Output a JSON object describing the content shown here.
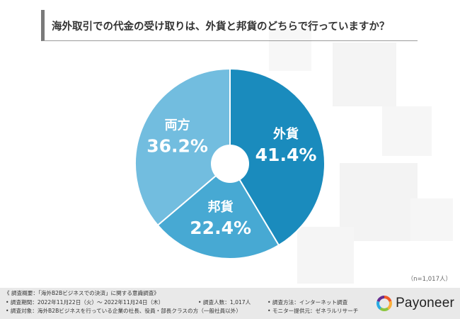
{
  "title": "海外取引での代金の受け取りは、外貨と邦貨のどちらで行っていますか？",
  "sample_note": "（n=1,017人）",
  "footer": {
    "overview": "《 調査概要：「海外B2Bビジネスでの決済」に関する意識調査》",
    "period": "• 調査期間：2022年11月22日（火）～ 2022年11月24日（木）",
    "respondents": "• 調査人数：1,017人",
    "method": "• 調査方法：インターネット調査",
    "target": "• 調査対象：海外B2Bビジネスを行っている企業の社長、役員・部長クラスの方（一般社員以外）",
    "provider": "• モニター提供元：ゼネラルリサーチ",
    "logo_text": "Payoneer"
  },
  "colors": {
    "foreign": "#1a8bbd",
    "domestic": "#47a9d3",
    "both": "#72bddf",
    "logo_ring": [
      "#f05a28",
      "#fbb03b",
      "#8cc63f",
      "#29abe2",
      "#662d91"
    ]
  },
  "chart_data": {
    "type": "pie",
    "donut_hole": true,
    "slices": [
      {
        "label": "外貨",
        "value": 41.4,
        "value_label": "41.4%"
      },
      {
        "label": "邦貨",
        "value": 22.4,
        "value_label": "22.4%"
      },
      {
        "label": "両方",
        "value": 36.2,
        "value_label": "36.2%"
      }
    ]
  }
}
